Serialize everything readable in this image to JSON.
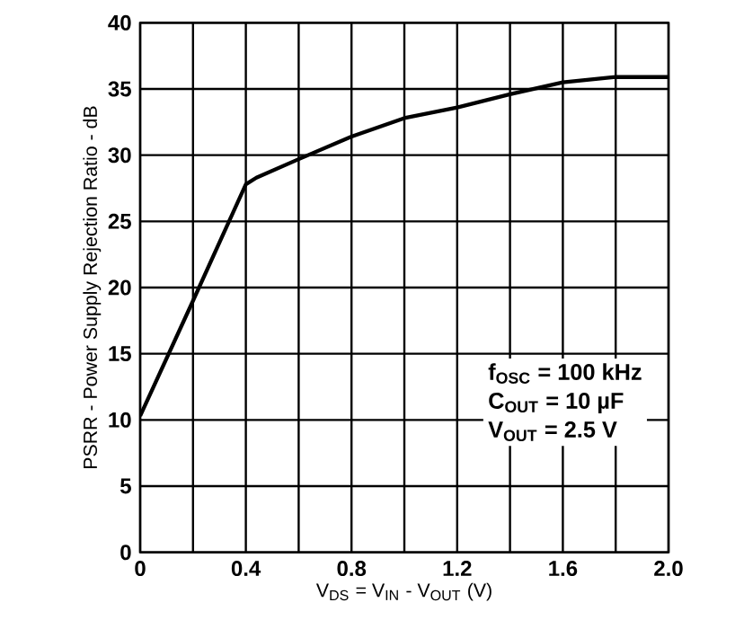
{
  "chart_data": {
    "type": "line",
    "xlabel": "V$_{DS}$ = V$_{IN}$ - V$_{OUT}$  (V)",
    "ylabel": "PSRR - Power Supply Rejection Ratio - dB",
    "x": [
      0,
      0.2,
      0.4,
      0.44,
      0.6,
      0.8,
      1.0,
      1.2,
      1.4,
      1.6,
      1.8,
      2.0
    ],
    "series": [
      {
        "color": "#000000",
        "values": [
          10.3,
          19,
          27.8,
          28.3,
          29.7,
          31.4,
          32.8,
          33.6,
          34.6,
          35.5,
          35.9,
          35.9
        ]
      }
    ],
    "xlim": [
      0,
      2.0
    ],
    "ylim": [
      0,
      40
    ],
    "xticks": [
      {
        "value": 0,
        "label": "0"
      },
      {
        "value": 0.2,
        "label": null
      },
      {
        "value": 0.4,
        "label": "0.4"
      },
      {
        "value": 0.6,
        "label": null
      },
      {
        "value": 0.8,
        "label": "0.8"
      },
      {
        "value": 1.0,
        "label": null
      },
      {
        "value": 1.2,
        "label": "1.2"
      },
      {
        "value": 1.4,
        "label": null
      },
      {
        "value": 1.6,
        "label": "1.6"
      },
      {
        "value": 1.8,
        "label": null
      },
      {
        "value": 2.0,
        "label": "2.0"
      }
    ],
    "yticks": [
      0,
      5,
      10,
      15,
      20,
      25,
      30,
      35,
      40
    ],
    "grid": true,
    "marker": "none",
    "line_style": "solid",
    "annotations": [
      "f$_{OSC}$ = 100 kHz",
      "C$_{OUT}$ = 10 µF",
      "V$_{OUT}$ = 2.5 V"
    ]
  }
}
